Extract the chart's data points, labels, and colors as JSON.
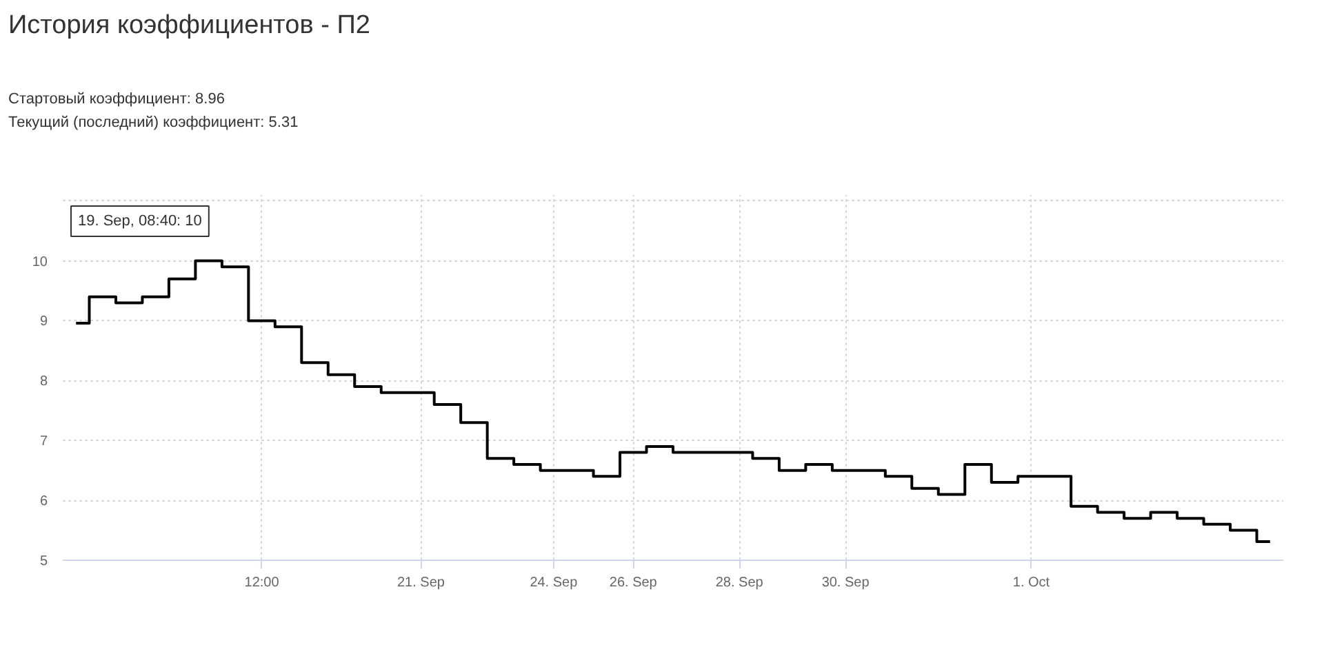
{
  "chart_data": {
    "type": "step",
    "title": "История коэффициентов - П2",
    "annotations": [
      "Стартовый коэффициент: 8.96",
      "Текущий (последний) коэффициент: 5.31",
      "19. Sep, 08:40: 10"
    ],
    "categories": [
      null,
      null,
      null,
      null,
      null,
      null,
      null,
      "12:00",
      null,
      null,
      null,
      null,
      null,
      "21. Sep",
      null,
      null,
      null,
      null,
      "24. Sep",
      null,
      null,
      "26. Sep",
      null,
      null,
      null,
      "28. Sep",
      null,
      null,
      null,
      "30. Sep",
      null,
      null,
      null,
      null,
      null,
      null,
      "1. Oct",
      null,
      null,
      null,
      null,
      null,
      null,
      null,
      null,
      null
    ],
    "series": [
      {
        "color": "#000000",
        "values": [
          8.96,
          9.4,
          9.3,
          9.4,
          9.7,
          10,
          9.9,
          9.0,
          8.9,
          8.3,
          8.1,
          7.9,
          7.8,
          7.8,
          7.6,
          7.3,
          6.7,
          6.6,
          6.5,
          6.5,
          6.4,
          6.8,
          6.9,
          6.8,
          6.8,
          6.8,
          6.7,
          6.5,
          6.6,
          6.5,
          6.5,
          6.4,
          6.2,
          6.1,
          6.6,
          6.3,
          6.4,
          6.4,
          5.9,
          5.8,
          5.7,
          5.8,
          5.7,
          5.6,
          5.5,
          5.31
        ]
      }
    ],
    "ylim": [
      5,
      11.1
    ],
    "yticks": [
      5,
      6,
      7,
      8,
      9,
      10,
      {
        "value": 11,
        "label": null
      }
    ],
    "grid": true,
    "line_style": "solid"
  }
}
